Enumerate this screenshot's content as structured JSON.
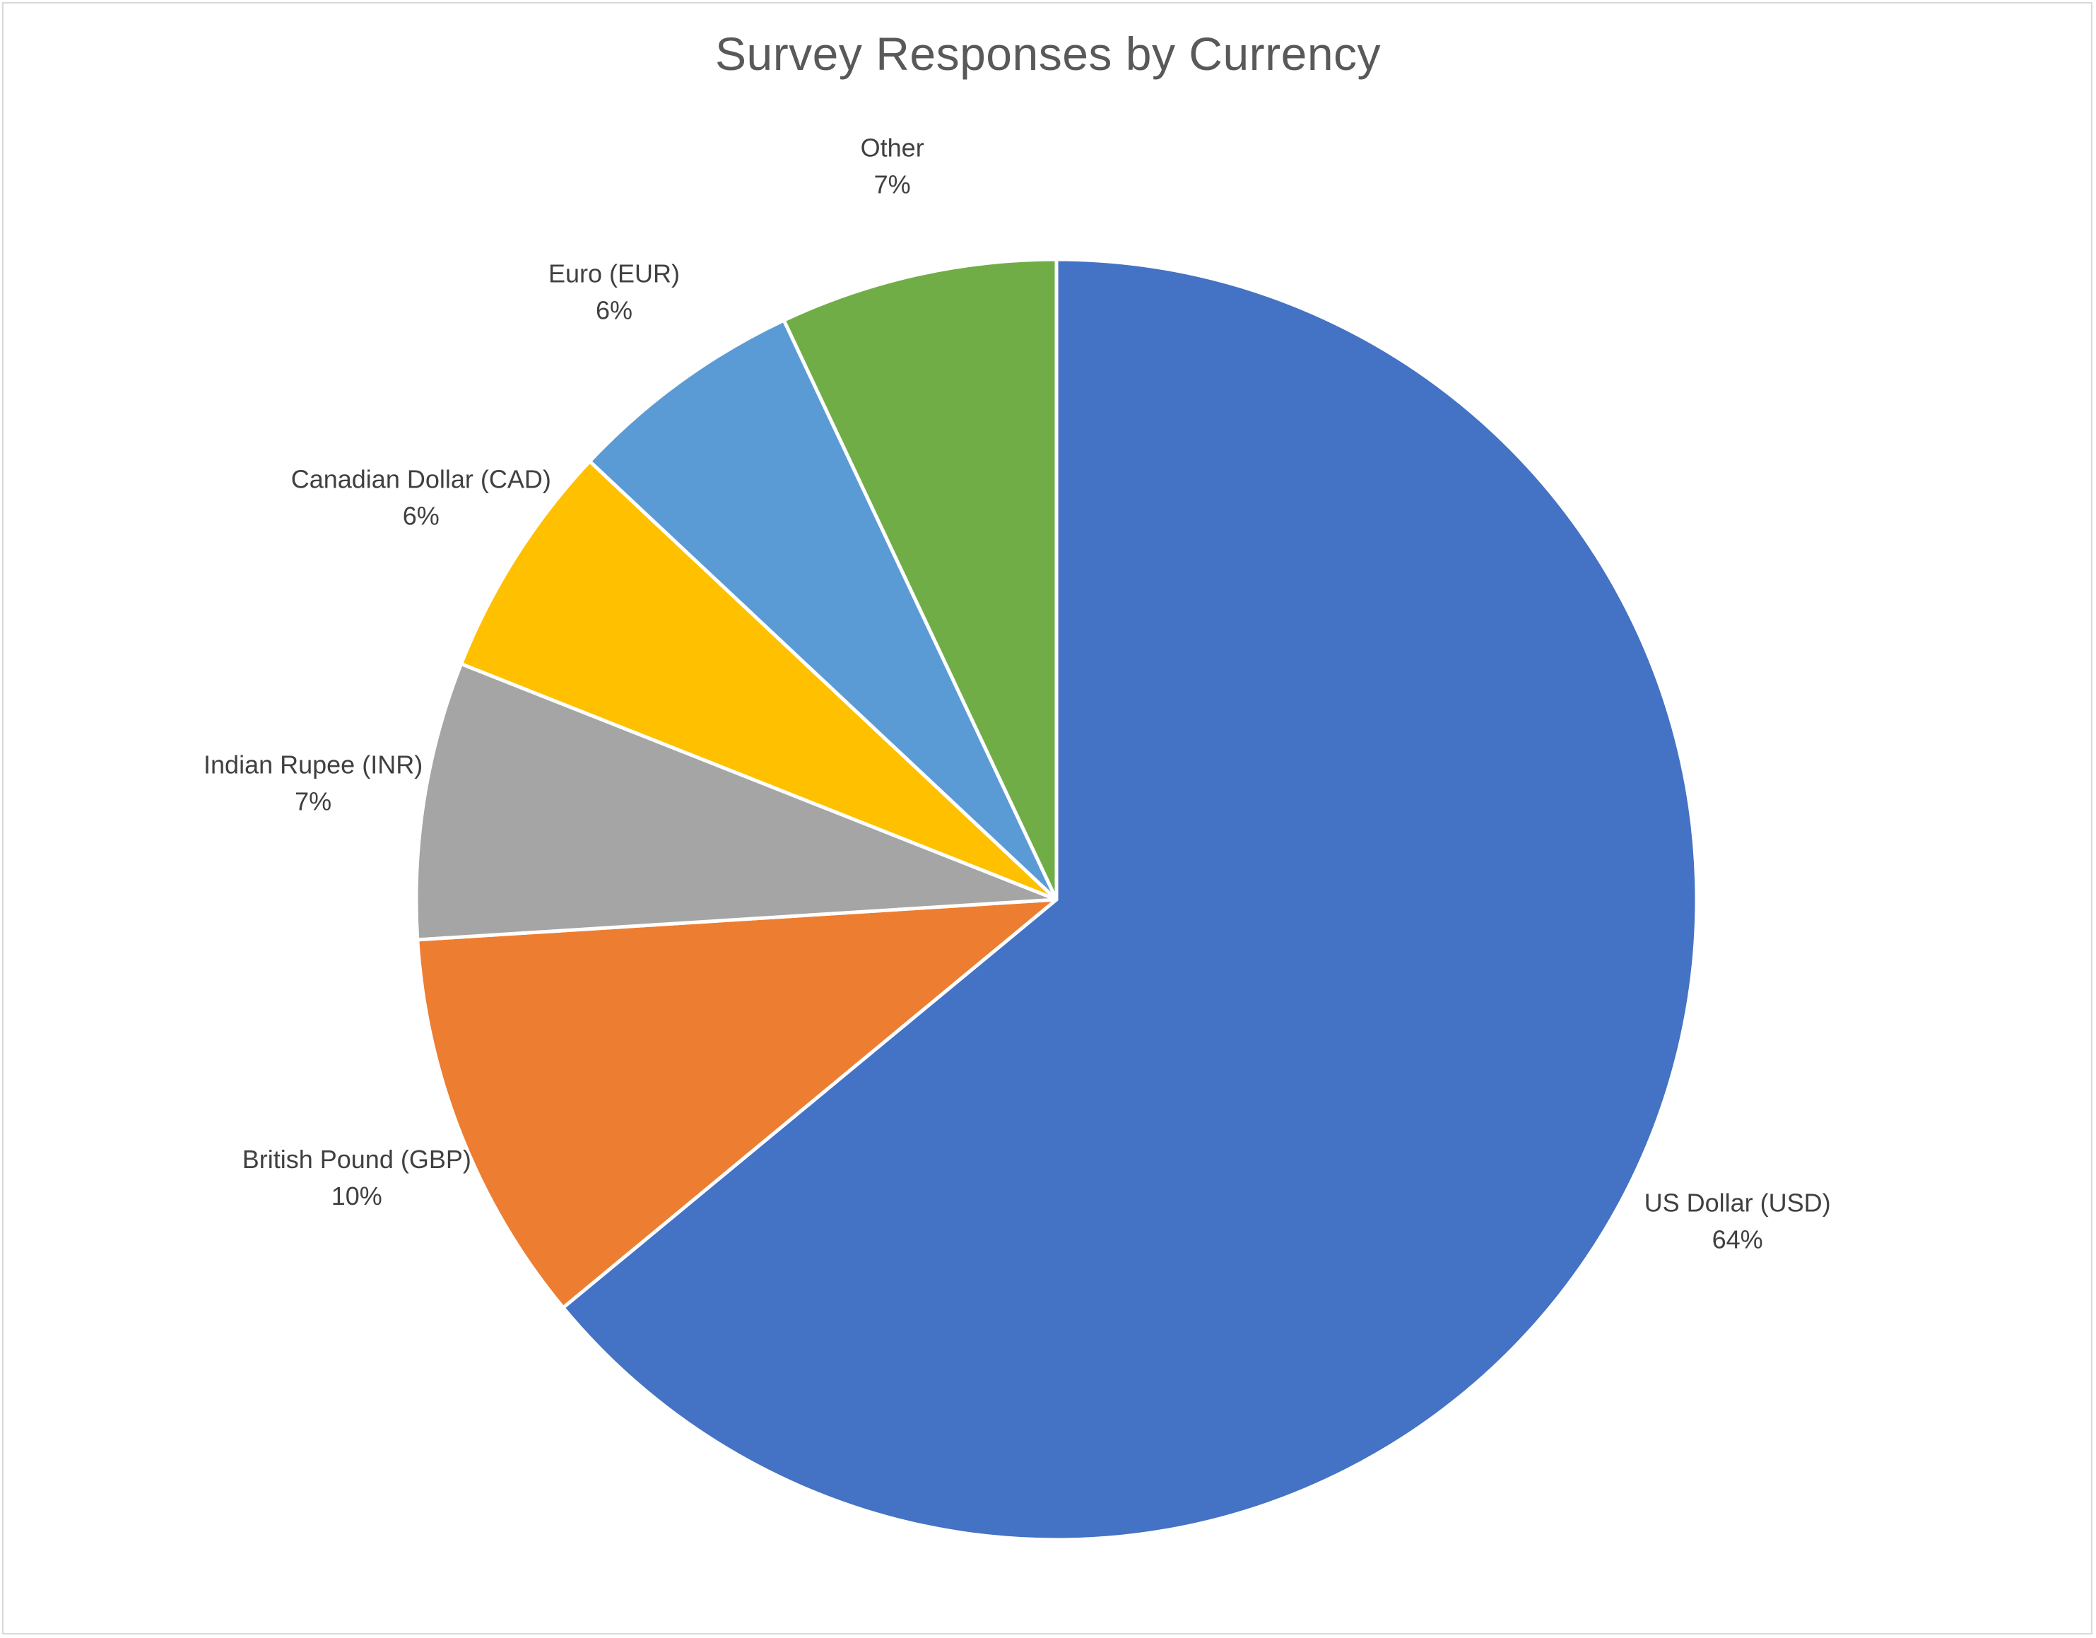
{
  "chart_data": {
    "type": "pie",
    "title": "Survey Responses by Currency",
    "categories": [
      "US Dollar (USD)",
      "British Pound (GBP)",
      "Indian Rupee (INR)",
      "Canadian Dollar (CAD)",
      "Euro (EUR)",
      "Other"
    ],
    "values": [
      64,
      10,
      7,
      6,
      6,
      7
    ],
    "value_labels": [
      "64%",
      "10%",
      "7%",
      "6%",
      "6%",
      "7%"
    ],
    "colors": [
      "#4472c4",
      "#ed7d31",
      "#a5a5a5",
      "#ffc000",
      "#5b9bd5",
      "#70ad47"
    ],
    "start": "12 o'clock, clockwise",
    "legend": "none",
    "data_labels": "outside, category name and percentage"
  }
}
